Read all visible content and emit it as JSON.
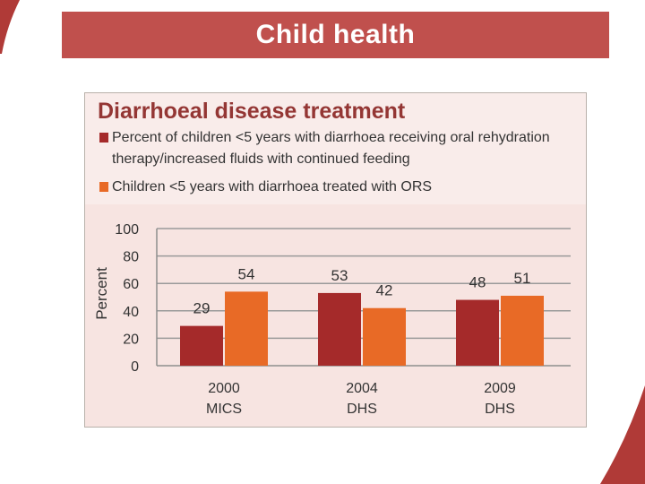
{
  "header": {
    "title": "Child health"
  },
  "panel": {
    "title": "Diarrhoeal disease treatment",
    "legend": [
      {
        "label": "Percent of children <5 years with diarrhoea receiving oral rehydration therapy/increased fluids with continued feeding",
        "color": "#a52a2a"
      },
      {
        "label": "Children <5 years with diarrhoea treated with ORS",
        "color": "#e86a26"
      }
    ]
  },
  "chart_data": {
    "type": "bar",
    "title": "Diarrhoeal disease treatment",
    "ylabel": "Percent",
    "xlabel": "",
    "ylim": [
      0,
      100
    ],
    "yticks": [
      0,
      20,
      40,
      60,
      80,
      100
    ],
    "grid": true,
    "categories": [
      "2000 MICS",
      "2004 DHS",
      "2009 DHS"
    ],
    "category_lines": [
      [
        "2000",
        "MICS"
      ],
      [
        "2004",
        "DHS"
      ],
      [
        "2009",
        "DHS"
      ]
    ],
    "series": [
      {
        "name": "Percent of children <5 years with diarrhoea receiving oral rehydration therapy/increased fluids with continued feeding",
        "color": "#a52a2a",
        "values": [
          29,
          53,
          48
        ]
      },
      {
        "name": "Children <5 years with diarrhoea treated with ORS",
        "color": "#e86a26",
        "values": [
          54,
          42,
          51
        ]
      }
    ]
  }
}
